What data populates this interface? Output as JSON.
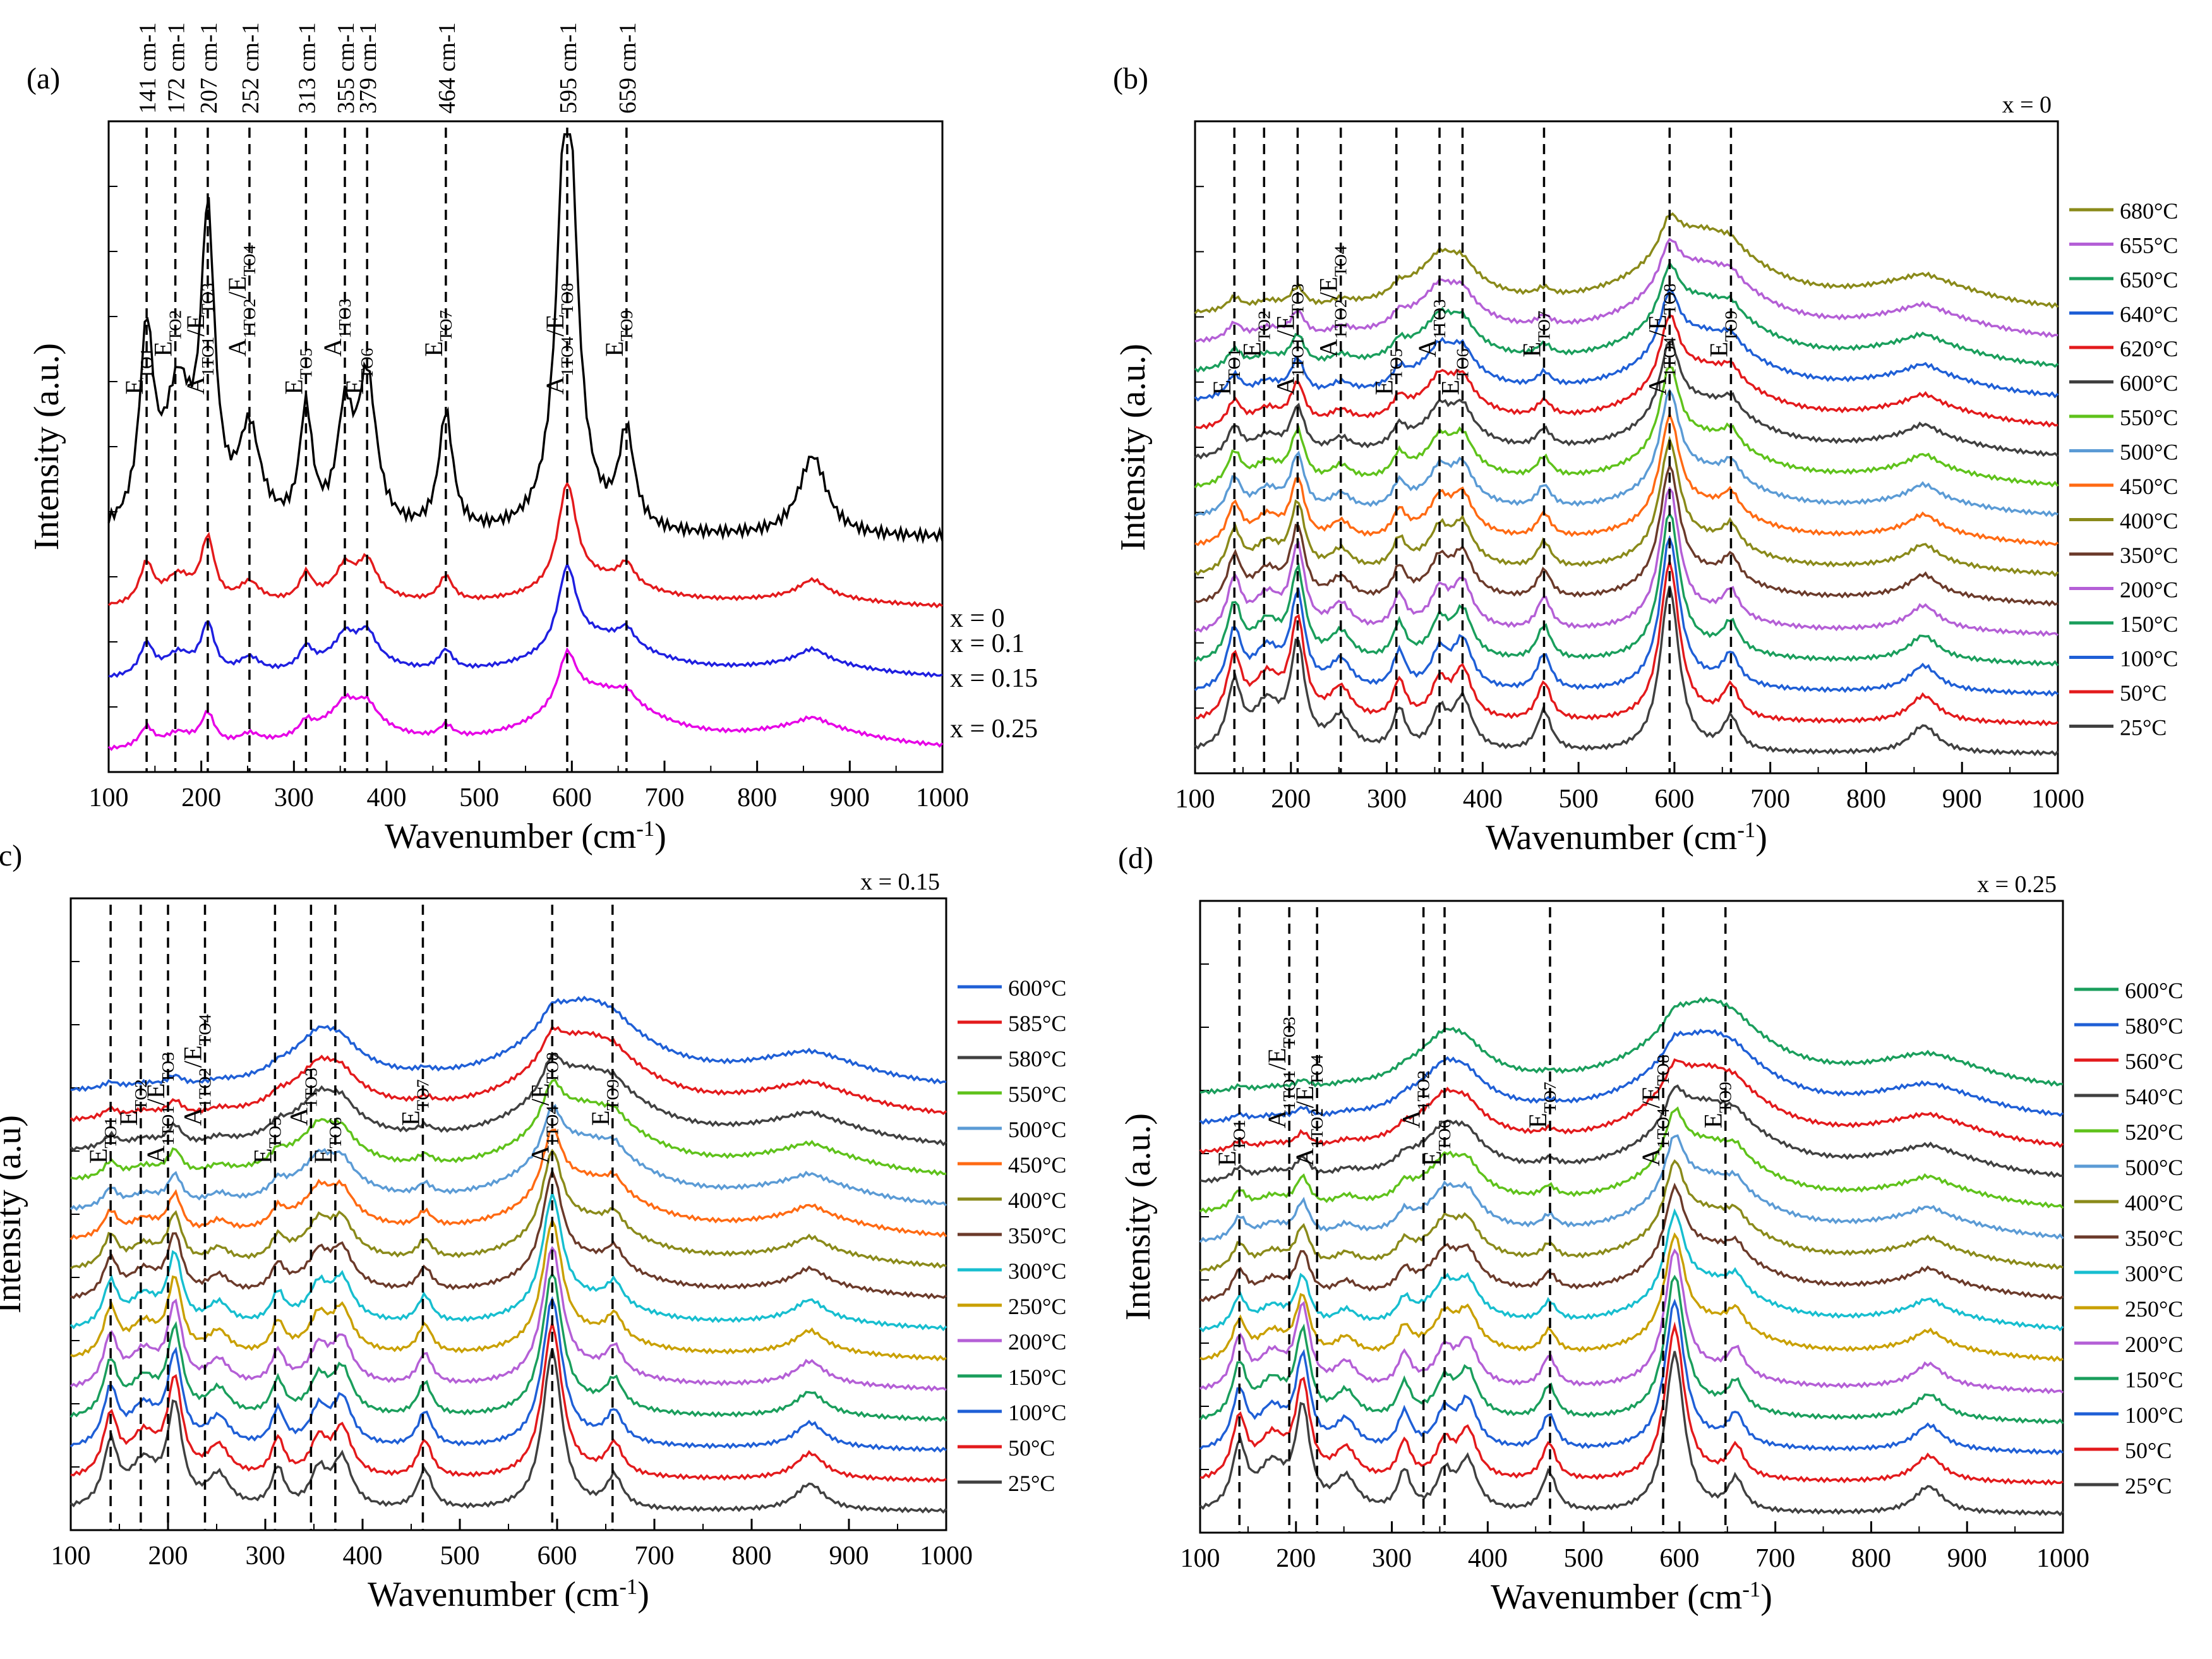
{
  "figure": {
    "panels": [
      {
        "id": "a",
        "letter": "(a)",
        "title": "",
        "xlabel": "Wavenumber (cm-1)",
        "ylabel": "Intensity (a.u.)",
        "xlim": [
          100,
          1000
        ],
        "x_ticks": [
          100,
          200,
          300,
          400,
          500,
          600,
          700,
          800,
          900,
          1000
        ],
        "legend_position": "right",
        "legend_style": "inline-right",
        "series": [
          {
            "name": "x = 0.25",
            "color": "#e600e6",
            "bump": 0.35
          },
          {
            "name": "x = 0.15",
            "color": "#1f1fe0",
            "bump": 0.55
          },
          {
            "name": "x = 0.1",
            "color": "#e31a1c",
            "bump": 0.7
          },
          {
            "name": "x = 0",
            "color": "#000000",
            "bump": 1.0
          }
        ],
        "top_labels": [
          "141 cm-1",
          "172 cm-1",
          "207 cm-1",
          "252 cm-1",
          "313 cm-1",
          "355 cm-1",
          "379 cm-1",
          "464 cm-1",
          "595 cm-1",
          "659 cm-1"
        ],
        "modes": [
          {
            "x": 141,
            "label": "E_TO1"
          },
          {
            "x": 172,
            "label": "E_TO2"
          },
          {
            "x": 207,
            "label": "A_1TO1/E_TO3"
          },
          {
            "x": 252,
            "label": "A_1TO2/E_TO4"
          },
          {
            "x": 313,
            "label": "E_TO5"
          },
          {
            "x": 355,
            "label": "A_1TO3"
          },
          {
            "x": 379,
            "label": "E_TO6"
          },
          {
            "x": 464,
            "label": "E_TO7"
          },
          {
            "x": 595,
            "label": "A_1TO4/E_TO8"
          },
          {
            "x": 659,
            "label": "E_TO9"
          }
        ]
      },
      {
        "id": "b",
        "letter": "(b)",
        "title": "x = 0",
        "xlabel": "Wavenumber (cm-1)",
        "ylabel": "Intensity (a.u.)",
        "xlim": [
          100,
          1000
        ],
        "x_ticks": [
          100,
          200,
          300,
          400,
          500,
          600,
          700,
          800,
          900,
          1000
        ],
        "legend_position": "right",
        "legend_style": "list",
        "series": [
          {
            "name": "25°C",
            "color": "#404040",
            "bump": 1.0
          },
          {
            "name": "50°C",
            "color": "#e31a1c",
            "bump": 0.95
          },
          {
            "name": "100°C",
            "color": "#1f5fd6",
            "bump": 0.9
          },
          {
            "name": "150°C",
            "color": "#1a9e5c",
            "bump": 0.85
          },
          {
            "name": "200°C",
            "color": "#b45fd6",
            "bump": 0.8
          },
          {
            "name": "350°C",
            "color": "#6b3a2a",
            "bump": 0.7
          },
          {
            "name": "400°C",
            "color": "#8a8a1a",
            "bump": 0.65
          },
          {
            "name": "450°C",
            "color": "#ff6a13",
            "bump": 0.6
          },
          {
            "name": "500°C",
            "color": "#5b9bd5",
            "bump": 0.55
          },
          {
            "name": "550°C",
            "color": "#5fc21b",
            "bump": 0.5
          },
          {
            "name": "600°C",
            "color": "#404040",
            "bump": 0.45
          },
          {
            "name": "620°C",
            "color": "#e31a1c",
            "bump": 0.4
          },
          {
            "name": "640°C",
            "color": "#1f5fd6",
            "bump": 0.35
          },
          {
            "name": "650°C",
            "color": "#1a9e5c",
            "bump": 0.3
          },
          {
            "name": "655°C",
            "color": "#b45fd6",
            "bump": 0.25
          },
          {
            "name": "680°C",
            "color": "#8a8a1a",
            "bump": 0.2
          }
        ],
        "top_labels": [],
        "modes": [
          {
            "x": 141,
            "label": "E_TO1"
          },
          {
            "x": 172,
            "label": "E_TO2"
          },
          {
            "x": 207,
            "label": "A_1TO1/E_TO3"
          },
          {
            "x": 252,
            "label": "A_1TO2/E_TO4"
          },
          {
            "x": 310,
            "label": "E_TO5"
          },
          {
            "x": 355,
            "label": "A_1TO3"
          },
          {
            "x": 379,
            "label": "E_TO6"
          },
          {
            "x": 464,
            "label": "E_TO7"
          },
          {
            "x": 595,
            "label": "A_1TO4/E_TO8"
          },
          {
            "x": 659,
            "label": "E_TO9"
          }
        ]
      },
      {
        "id": "c",
        "letter": "(c)",
        "title": "x = 0.15",
        "xlabel": "Wavenumber (cm-1)",
        "ylabel": "Intensity (a.u)",
        "xlim": [
          100,
          1000
        ],
        "x_ticks": [
          100,
          200,
          300,
          400,
          500,
          600,
          700,
          800,
          900,
          1000
        ],
        "legend_position": "right",
        "legend_style": "list",
        "series": [
          {
            "name": "25°C",
            "color": "#404040",
            "bump": 1.0
          },
          {
            "name": "50°C",
            "color": "#e31a1c",
            "bump": 0.95
          },
          {
            "name": "100°C",
            "color": "#1f5fd6",
            "bump": 0.9
          },
          {
            "name": "150°C",
            "color": "#1a9e5c",
            "bump": 0.85
          },
          {
            "name": "200°C",
            "color": "#b45fd6",
            "bump": 0.8
          },
          {
            "name": "250°C",
            "color": "#c9a000",
            "bump": 0.75
          },
          {
            "name": "300°C",
            "color": "#17becf",
            "bump": 0.7
          },
          {
            "name": "350°C",
            "color": "#6b3a2a",
            "bump": 0.6
          },
          {
            "name": "400°C",
            "color": "#8a8a1a",
            "bump": 0.5
          },
          {
            "name": "450°C",
            "color": "#ff6a13",
            "bump": 0.4
          },
          {
            "name": "500°C",
            "color": "#5b9bd5",
            "bump": 0.3
          },
          {
            "name": "550°C",
            "color": "#5fc21b",
            "bump": 0.25
          },
          {
            "name": "580°C",
            "color": "#404040",
            "bump": 0.2
          },
          {
            "name": "585°C",
            "color": "#e31a1c",
            "bump": 0.15
          },
          {
            "name": "600°C",
            "color": "#1f5fd6",
            "bump": 0.1
          }
        ],
        "top_labels": [],
        "modes": [
          {
            "x": 141,
            "label": "E_TO1"
          },
          {
            "x": 172,
            "label": "E_TO2"
          },
          {
            "x": 200,
            "label": "A_1TO1/E_TO3"
          },
          {
            "x": 238,
            "label": "A_1TO2/E_TO4"
          },
          {
            "x": 310,
            "label": "E_TO5"
          },
          {
            "x": 347,
            "label": "A_1TO3"
          },
          {
            "x": 372,
            "label": "E_TO6"
          },
          {
            "x": 462,
            "label": "E_TO7"
          },
          {
            "x": 595,
            "label": "A_1TO4/E_TO8"
          },
          {
            "x": 657,
            "label": "E_TO9"
          }
        ]
      },
      {
        "id": "d",
        "letter": "(d)",
        "title": "x = 0.25",
        "xlabel": "Wavenumber (cm-1)",
        "ylabel": "Intensity (a.u.)",
        "xlim": [
          100,
          1000
        ],
        "x_ticks": [
          100,
          200,
          300,
          400,
          500,
          600,
          700,
          800,
          900,
          1000
        ],
        "legend_position": "right",
        "legend_style": "list",
        "series": [
          {
            "name": "25°C",
            "color": "#404040",
            "bump": 1.0
          },
          {
            "name": "50°C",
            "color": "#e31a1c",
            "bump": 0.95
          },
          {
            "name": "100°C",
            "color": "#1f5fd6",
            "bump": 0.9
          },
          {
            "name": "150°C",
            "color": "#1a9e5c",
            "bump": 0.85
          },
          {
            "name": "200°C",
            "color": "#b45fd6",
            "bump": 0.8
          },
          {
            "name": "250°C",
            "color": "#c9a000",
            "bump": 0.6
          },
          {
            "name": "300°C",
            "color": "#17becf",
            "bump": 0.5
          },
          {
            "name": "350°C",
            "color": "#6b3a2a",
            "bump": 0.45
          },
          {
            "name": "400°C",
            "color": "#8a8a1a",
            "bump": 0.4
          },
          {
            "name": "500°C",
            "color": "#5b9bd5",
            "bump": 0.35
          },
          {
            "name": "520°C",
            "color": "#5fc21b",
            "bump": 0.3
          },
          {
            "name": "540°C",
            "color": "#404040",
            "bump": 0.2
          },
          {
            "name": "560°C",
            "color": "#e31a1c",
            "bump": 0.15
          },
          {
            "name": "580°C",
            "color": "#1f5fd6",
            "bump": 0.1
          },
          {
            "name": "600°C",
            "color": "#1a9e5c",
            "bump": 0.08
          }
        ],
        "top_labels": [],
        "modes": [
          {
            "x": 141,
            "label": "E_TO1"
          },
          {
            "x": 193,
            "label": "A_1TO1/E_TO3"
          },
          {
            "x": 222,
            "label": "A_1TO2/E_TO4"
          },
          {
            "x": 333,
            "label": "A_1TO2"
          },
          {
            "x": 355,
            "label": "E_TO6"
          },
          {
            "x": 465,
            "label": "E_TO7"
          },
          {
            "x": 583,
            "label": "A_1TO4/E_TO8"
          },
          {
            "x": 648,
            "label": "E_TO9"
          }
        ]
      }
    ]
  },
  "chart_data": [
    {
      "type": "line",
      "panel": "(a)",
      "title": "",
      "xlabel": "Wavenumber (cm-1)",
      "ylabel": "Intensity (a.u.)",
      "xlim": [
        100,
        1000
      ],
      "series": [
        {
          "name": "x = 0",
          "x": [
            100,
            141,
            172,
            207,
            252,
            313,
            355,
            379,
            464,
            595,
            659,
            860,
            1000
          ],
          "values": [
            0.05,
            0.42,
            0.32,
            0.75,
            0.26,
            0.38,
            0.36,
            0.42,
            0.32,
            1.0,
            0.26,
            0.22,
            0.05
          ]
        },
        {
          "name": "x = 0.1",
          "x": [
            100,
            141,
            172,
            207,
            252,
            313,
            355,
            379,
            464,
            595,
            659,
            860,
            1000
          ],
          "values": [
            0.04,
            0.22,
            0.18,
            0.34,
            0.16,
            0.2,
            0.22,
            0.22,
            0.18,
            0.52,
            0.14,
            0.12,
            0.04
          ]
        },
        {
          "name": "x = 0.15",
          "x": [
            100,
            141,
            172,
            207,
            252,
            313,
            355,
            379,
            464,
            595,
            659,
            860,
            1000
          ],
          "values": [
            0.04,
            0.16,
            0.16,
            0.24,
            0.14,
            0.16,
            0.18,
            0.2,
            0.15,
            0.44,
            0.12,
            0.1,
            0.03
          ]
        },
        {
          "name": "x = 0.25",
          "x": [
            100,
            141,
            207,
            252,
            340,
            464,
            580,
            659,
            860,
            1000
          ],
          "values": [
            0.03,
            0.12,
            0.14,
            0.1,
            0.16,
            0.1,
            0.22,
            0.08,
            0.05,
            0.02
          ]
        }
      ]
    },
    {
      "type": "line",
      "panel": "(b)",
      "title": "x = 0",
      "xlabel": "Wavenumber (cm-1)",
      "ylabel": "Intensity (a.u.)",
      "xlim": [
        100,
        1000
      ],
      "series_names": [
        "25°C",
        "50°C",
        "100°C",
        "150°C",
        "200°C",
        "350°C",
        "400°C",
        "450°C",
        "500°C",
        "550°C",
        "600°C",
        "620°C",
        "640°C",
        "650°C",
        "655°C",
        "680°C"
      ]
    },
    {
      "type": "line",
      "panel": "(c)",
      "title": "x = 0.15",
      "xlabel": "Wavenumber (cm-1)",
      "ylabel": "Intensity (a.u)",
      "xlim": [
        100,
        1000
      ],
      "series_names": [
        "25°C",
        "50°C",
        "100°C",
        "150°C",
        "200°C",
        "250°C",
        "300°C",
        "350°C",
        "400°C",
        "450°C",
        "500°C",
        "550°C",
        "580°C",
        "585°C",
        "600°C"
      ]
    },
    {
      "type": "line",
      "panel": "(d)",
      "title": "x = 0.25",
      "xlabel": "Wavenumber (cm-1)",
      "ylabel": "Intensity (a.u.)",
      "xlim": [
        100,
        1000
      ],
      "series_names": [
        "25°C",
        "50°C",
        "100°C",
        "150°C",
        "200°C",
        "250°C",
        "300°C",
        "350°C",
        "400°C",
        "500°C",
        "520°C",
        "540°C",
        "560°C",
        "580°C",
        "600°C"
      ]
    }
  ]
}
